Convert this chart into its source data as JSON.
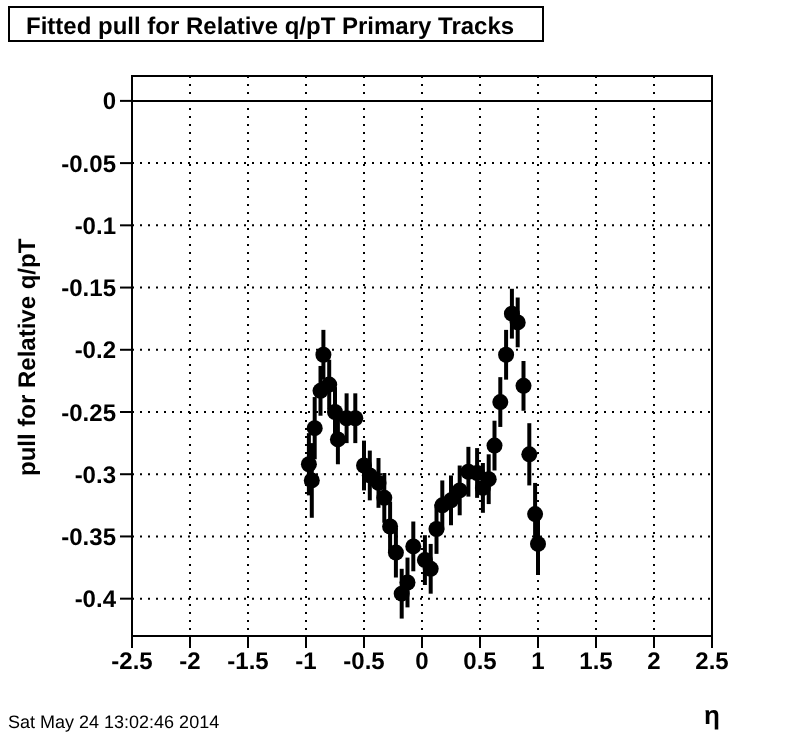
{
  "chart_data": {
    "type": "scatter",
    "title": "Fitted pull for Relative q/pT  Primary Tracks",
    "xlabel": "η",
    "ylabel": "pull for Relative q/pT",
    "annotations": [
      "Sat May 24 13:02:46 2014"
    ],
    "x": [
      -0.975,
      -0.95,
      -0.925,
      -0.875,
      -0.85,
      -0.8,
      -0.75,
      -0.725,
      -0.65,
      -0.575,
      -0.5,
      -0.45,
      -0.375,
      -0.325,
      -0.275,
      -0.225,
      -0.175,
      -0.125,
      -0.075,
      -0.025,
      0.025,
      0.075,
      0.125,
      0.175,
      0.25,
      0.325,
      0.4,
      0.475,
      0.525,
      0.575,
      0.625,
      0.675,
      0.725,
      0.775,
      0.825,
      0.875,
      0.925,
      0.975,
      1.0
    ],
    "series": [
      {
        "color": "#000000",
        "values": [
          -0.292,
          -0.305,
          -0.263,
          -0.233,
          -0.204,
          -0.228,
          -0.25,
          -0.272,
          -0.255,
          -0.255,
          -0.293,
          -0.301,
          -0.307,
          -0.319,
          -0.342,
          -0.363,
          -0.396,
          -0.387,
          -0.358,
          null,
          -0.369,
          -0.376,
          -0.344,
          -0.325,
          -0.321,
          -0.313,
          -0.298,
          -0.299,
          -0.311,
          -0.304,
          -0.277,
          -0.242,
          -0.204,
          -0.171,
          -0.178,
          -0.229,
          -0.284,
          -0.332,
          -0.356
        ],
        "errors": [
          0.025,
          0.03,
          0.025,
          0.02,
          0.02,
          0.02,
          0.02,
          0.02,
          0.02,
          0.02,
          0.02,
          0.02,
          0.02,
          0.02,
          0.02,
          0.02,
          0.02,
          0.02,
          0.02,
          null,
          0.02,
          0.02,
          0.02,
          0.02,
          0.02,
          0.02,
          0.02,
          0.02,
          0.02,
          0.02,
          0.02,
          0.02,
          0.02,
          0.02,
          0.02,
          0.02,
          0.025,
          0.025,
          0.025
        ]
      }
    ],
    "xlim": [
      -2.5,
      2.5
    ],
    "xticks": [
      -2.5,
      -2,
      -1.5,
      -1,
      -0.5,
      0,
      0.5,
      1,
      1.5,
      2,
      2.5
    ],
    "ylim": [
      -0.43,
      0.02
    ],
    "yticks": [
      0,
      -0.05,
      -0.1,
      -0.15,
      -0.2,
      -0.25,
      -0.3,
      -0.35,
      -0.4
    ],
    "ref_lines": [
      {
        "axis": "y",
        "value": 0,
        "color": "#000000"
      }
    ],
    "grid": true,
    "marker": "circle"
  }
}
